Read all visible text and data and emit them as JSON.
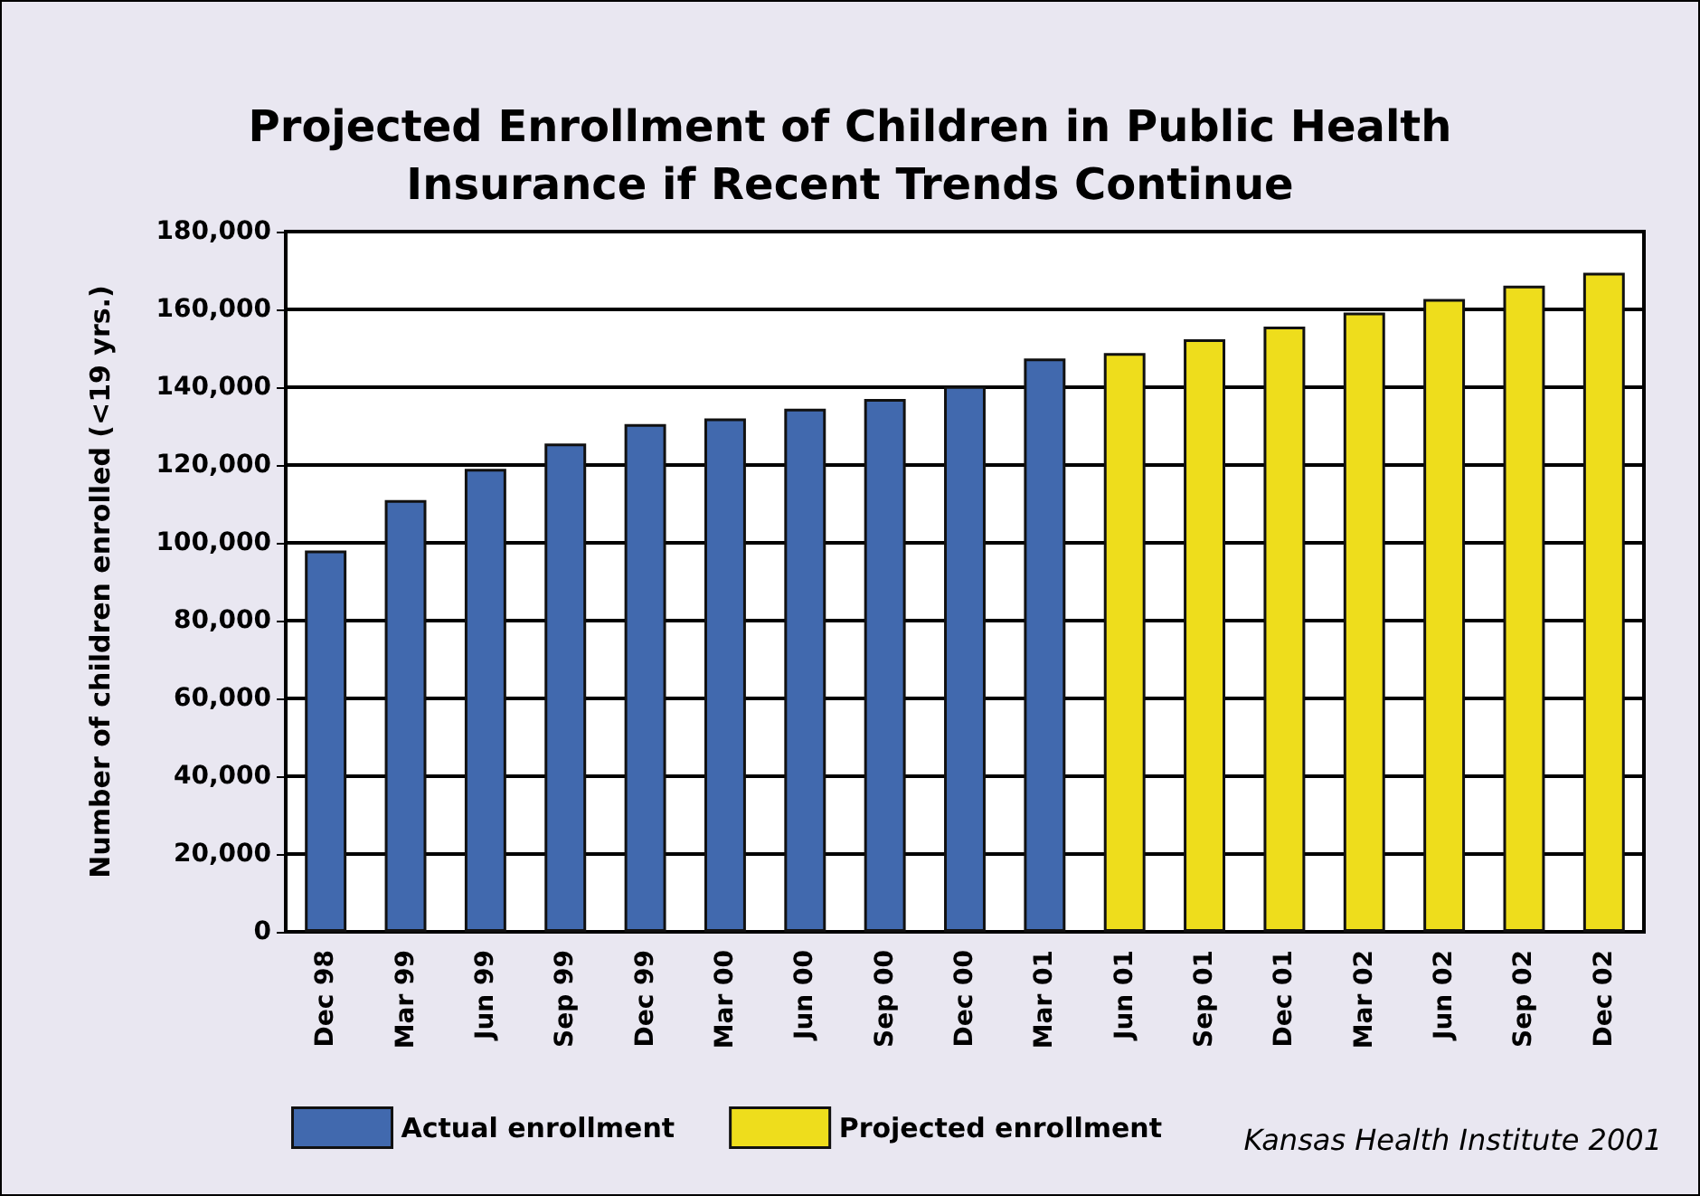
{
  "chart_data": {
    "type": "bar",
    "title": "Projected Enrollment of Children in Public Health\nInsurance if Recent Trends Continue",
    "ylabel": "Number of children enrolled (<19 yrs.)",
    "categories": [
      "Dec 98",
      "Mar 99",
      "Jun 99",
      "Sep 99",
      "Dec 99",
      "Mar 00",
      "Jun 00",
      "Sep 00",
      "Dec 00",
      "Mar 01",
      "Jun 01",
      "Sep 01",
      "Dec 01",
      "Mar 02",
      "Jun 02",
      "Sep 02",
      "Dec 02"
    ],
    "series": [
      {
        "name": "Actual enrollment",
        "color": "#4169ae",
        "values": [
          98000,
          111000,
          119000,
          125500,
          130500,
          132000,
          134500,
          137000,
          140300,
          147400,
          null,
          null,
          null,
          null,
          null,
          null,
          null
        ]
      },
      {
        "name": "Projected enrollment",
        "color": "#eedd1c",
        "values": [
          null,
          null,
          null,
          null,
          null,
          null,
          null,
          null,
          null,
          null,
          148800,
          152300,
          155600,
          159200,
          162700,
          166100,
          169400
        ]
      }
    ],
    "ylim": [
      0,
      180000
    ],
    "yticks": [
      0,
      {
        "value": 20000,
        "label": "20,000"
      },
      {
        "value": 40000,
        "label": "40,000"
      },
      {
        "value": 60000,
        "label": "60,000"
      },
      {
        "value": 80000,
        "label": "80,000"
      },
      {
        "value": 100000,
        "label": "100,000"
      },
      {
        "value": 120000,
        "label": "120,000"
      },
      {
        "value": 140000,
        "label": "140,000"
      },
      {
        "value": 160000,
        "label": "160,000"
      },
      {
        "value": 180000,
        "label": "180,000"
      }
    ],
    "grid": "y",
    "legend": "bottom left",
    "annotations": [
      "Kansas Health Institute 2001"
    ]
  }
}
